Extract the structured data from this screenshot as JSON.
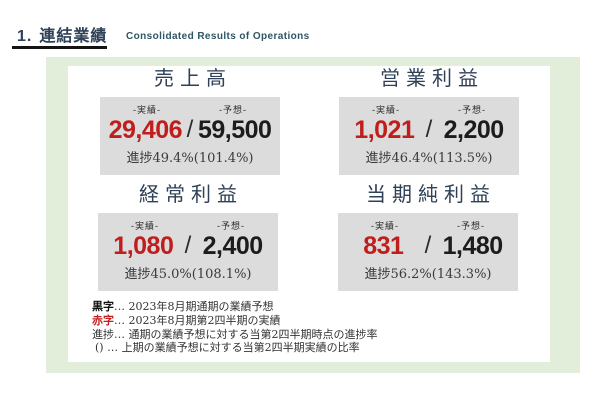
{
  "header": {
    "number": "1.",
    "title_ja": "連結業績",
    "title_en": "Consolidated Results of Operations"
  },
  "metrics": [
    {
      "title": "売上高",
      "actual_label": "-実績-",
      "forecast_label": "-予想-",
      "actual": "29,406",
      "separator": "/",
      "forecast": "59,500",
      "progress": "進捗49.4%(101.4%)"
    },
    {
      "title": "営業利益",
      "actual_label": "-実績-",
      "forecast_label": "-予想-",
      "actual": "1,021",
      "separator": "/",
      "forecast": "2,200",
      "progress": "進捗46.4%(113.5%)"
    },
    {
      "title": "経常利益",
      "actual_label": "-実績-",
      "forecast_label": "-予想-",
      "actual": "1,080",
      "separator": "/",
      "forecast": "2,400",
      "progress": "進捗45.0%(108.1%)"
    },
    {
      "title": "当期純利益",
      "actual_label": "-実績-",
      "forecast_label": "-予想-",
      "actual": "831",
      "separator": "/",
      "forecast": "1,480",
      "progress": "進捗56.2%(143.3%)"
    }
  ],
  "footnotes": [
    {
      "term": "黒字",
      "rest": "… 2023年8月期通期の業績予想",
      "emphasis": "black-bold"
    },
    {
      "term": "赤字",
      "rest": "… 2023年8月期第2四半期の実績",
      "emphasis": "red-bold"
    },
    {
      "term": "進捗",
      "rest": "… 通期の業績予想に対する当第2四半期時点の進捗率",
      "emphasis": "none"
    },
    {
      "term": "()",
      "rest": " … 上期の業績予想に対する当第2四半期実績の比率",
      "emphasis": "none"
    }
  ],
  "colors": {
    "accent_red": "#c01d1d",
    "heading_navy": "#2e4156",
    "panel_green": "#e2eeda",
    "card_gray": "#dcdcdc"
  }
}
